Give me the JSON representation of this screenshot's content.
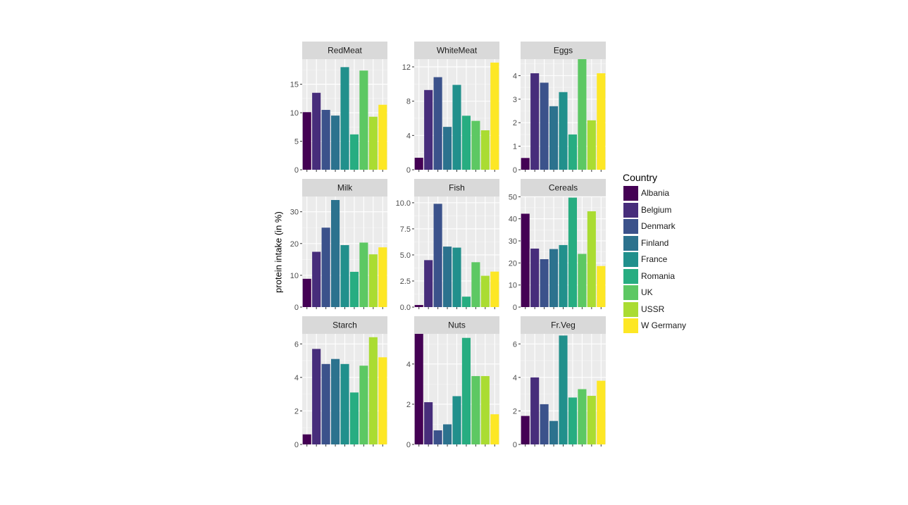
{
  "chart_data": {
    "type": "bar",
    "ylabel": "protein intake (in %)",
    "legend": {
      "title": "Country",
      "position": "right",
      "items": [
        "Albania",
        "Belgium",
        "Denmark",
        "Finland",
        "France",
        "Romania",
        "UK",
        "USSR",
        "W Germany"
      ]
    },
    "colors": [
      "#440154",
      "#472D7B",
      "#3B528B",
      "#2C728E",
      "#21908C",
      "#27AD81",
      "#5DC863",
      "#AADC32",
      "#FDE725"
    ],
    "grid": true,
    "panels": [
      {
        "title": "RedMeat",
        "ylim": [
          0,
          19.4
        ],
        "yticks": [
          0,
          5,
          10,
          15
        ],
        "ytick_labels": [
          "0",
          "5",
          "10",
          "15"
        ],
        "values": [
          10.1,
          13.5,
          10.5,
          9.5,
          18.0,
          6.2,
          17.4,
          9.3,
          11.4
        ]
      },
      {
        "title": "WhiteMeat",
        "ylim": [
          0,
          12.9
        ],
        "yticks": [
          0,
          4,
          8,
          12
        ],
        "ytick_labels": [
          "0",
          "4",
          "8",
          "12"
        ],
        "values": [
          1.4,
          9.3,
          10.8,
          5.0,
          9.9,
          6.3,
          5.7,
          4.6,
          12.5
        ]
      },
      {
        "title": "Eggs",
        "ylim": [
          0,
          4.7
        ],
        "yticks": [
          0,
          1,
          2,
          3,
          4
        ],
        "ytick_labels": [
          "0",
          "1",
          "2",
          "3",
          "4"
        ],
        "values": [
          0.5,
          4.1,
          3.7,
          2.7,
          3.3,
          1.5,
          4.7,
          2.1,
          4.1
        ]
      },
      {
        "title": "Milk",
        "ylim": [
          0,
          34.8
        ],
        "yticks": [
          0,
          10,
          20,
          30
        ],
        "ytick_labels": [
          "0",
          "10",
          "20",
          "30"
        ],
        "values": [
          8.9,
          17.4,
          25.0,
          33.7,
          19.5,
          11.1,
          20.3,
          16.6,
          18.8
        ]
      },
      {
        "title": "Fish",
        "ylim": [
          0,
          10.6
        ],
        "yticks": [
          0,
          2.5,
          5,
          7.5,
          10
        ],
        "ytick_labels": [
          "0.0",
          "2.5",
          "5.0",
          "7.5",
          "10.0"
        ],
        "values": [
          0.2,
          4.5,
          9.9,
          5.8,
          5.7,
          1.0,
          4.3,
          3.0,
          3.4
        ]
      },
      {
        "title": "Cereals",
        "ylim": [
          0,
          50.1
        ],
        "yticks": [
          0,
          10,
          20,
          30,
          40,
          50
        ],
        "ytick_labels": [
          "0",
          "10",
          "20",
          "30",
          "40",
          "50"
        ],
        "values": [
          42.3,
          26.5,
          21.7,
          26.3,
          28.1,
          49.6,
          24.1,
          43.4,
          18.6
        ]
      },
      {
        "title": "Starch",
        "ylim": [
          0,
          6.6
        ],
        "yticks": [
          0,
          2,
          4,
          6
        ],
        "ytick_labels": [
          "0",
          "2",
          "4",
          "6"
        ],
        "values": [
          0.6,
          5.7,
          4.8,
          5.1,
          4.8,
          3.1,
          4.7,
          6.4,
          5.2
        ]
      },
      {
        "title": "Nuts",
        "ylim": [
          0,
          5.5
        ],
        "yticks": [
          0,
          2,
          4
        ],
        "ytick_labels": [
          "0",
          "2",
          "4"
        ],
        "values": [
          5.5,
          2.1,
          0.7,
          1.0,
          2.4,
          5.3,
          3.4,
          3.4,
          1.5
        ]
      },
      {
        "title": "Fr.Veg",
        "ylim": [
          0,
          6.6
        ],
        "yticks": [
          0,
          2,
          4,
          6
        ],
        "ytick_labels": [
          "0",
          "2",
          "4",
          "6"
        ],
        "values": [
          1.7,
          4.0,
          2.4,
          1.4,
          6.5,
          2.8,
          3.3,
          2.9,
          3.8
        ]
      }
    ]
  }
}
